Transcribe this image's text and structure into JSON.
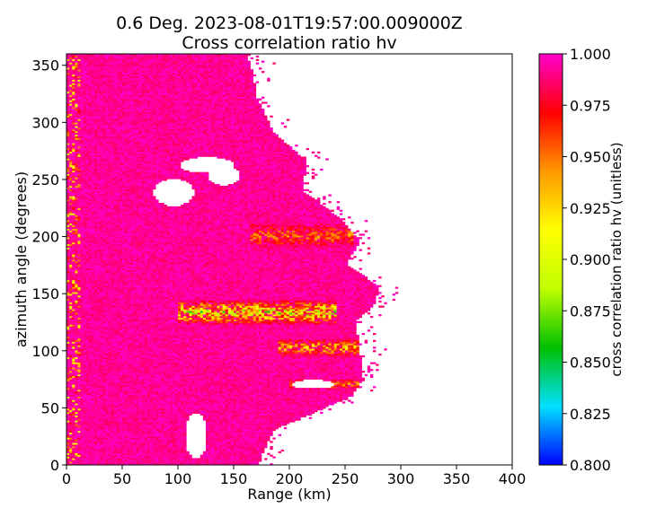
{
  "chart_data": {
    "type": "heatmap",
    "title_line1": "0.6 Deg. 2023-08-01T19:57:00.009000Z",
    "title_line2": "Cross correlation ratio hv",
    "xlabel": "Range (km)",
    "ylabel": "azimuth angle (degrees)",
    "xlim": [
      0,
      400
    ],
    "ylim": [
      0,
      360
    ],
    "xticks": [
      0,
      50,
      100,
      150,
      200,
      250,
      300,
      350,
      400
    ],
    "yticks": [
      0,
      50,
      100,
      150,
      200,
      250,
      300,
      350
    ],
    "xtick_labels": [
      "0",
      "50",
      "100",
      "150",
      "200",
      "250",
      "300",
      "350",
      "400"
    ],
    "ytick_labels": [
      "0",
      "50",
      "100",
      "150",
      "200",
      "250",
      "300",
      "350"
    ],
    "colorbar": {
      "label": "cross correlation ratio hv (unitless)",
      "min": 0.8,
      "max": 1.0,
      "ticks": [
        0.8,
        0.825,
        0.85,
        0.875,
        0.9,
        0.925,
        0.95,
        0.975,
        1.0
      ],
      "tick_labels": [
        "0.800",
        "0.825",
        "0.850",
        "0.875",
        "0.900",
        "0.925",
        "0.950",
        "0.975",
        "1.000"
      ],
      "colormap": [
        "#0000ff",
        "#00e0ff",
        "#00c000",
        "#c0ff00",
        "#ffff00",
        "#ff9900",
        "#ff0000",
        "#ff00cc"
      ]
    },
    "echo_extent": [
      {
        "azimuth": 0,
        "max_range_km": 170
      },
      {
        "azimuth": 30,
        "max_range_km": 185
      },
      {
        "azimuth": 60,
        "max_range_km": 255
      },
      {
        "azimuth": 75,
        "max_range_km": 265
      },
      {
        "azimuth": 100,
        "max_range_km": 262
      },
      {
        "azimuth": 125,
        "max_range_km": 258
      },
      {
        "azimuth": 140,
        "max_range_km": 275
      },
      {
        "azimuth": 155,
        "max_range_km": 280
      },
      {
        "azimuth": 175,
        "max_range_km": 250
      },
      {
        "azimuth": 195,
        "max_range_km": 262
      },
      {
        "azimuth": 215,
        "max_range_km": 245
      },
      {
        "azimuth": 240,
        "max_range_km": 210
      },
      {
        "azimuth": 265,
        "max_range_km": 215
      },
      {
        "azimuth": 290,
        "max_range_km": 185
      },
      {
        "azimuth": 320,
        "max_range_km": 170
      },
      {
        "azimuth": 345,
        "max_range_km": 165
      },
      {
        "azimuth": 360,
        "max_range_km": 160
      }
    ],
    "low_correlation_bands": [
      {
        "azimuth_center": 133,
        "azimuth_half_width": 12,
        "range_start_km": 100,
        "range_end_km": 240,
        "min_value": 0.86
      },
      {
        "azimuth_center": 102,
        "azimuth_half_width": 9,
        "range_start_km": 190,
        "range_end_km": 262,
        "min_value": 0.9
      },
      {
        "azimuth_center": 200,
        "azimuth_half_width": 14,
        "range_start_km": 165,
        "range_end_km": 255,
        "min_value": 0.93
      },
      {
        "azimuth_center": 70,
        "azimuth_half_width": 5,
        "range_start_km": 200,
        "range_end_km": 260,
        "min_value": 0.92
      }
    ],
    "no_echo_regions": [
      {
        "azimuth_center": 238,
        "range_center_km": 95,
        "azimuth_half_width": 12,
        "range_half_width_km": 18
      },
      {
        "azimuth_center": 262,
        "range_center_km": 125,
        "azimuth_half_width": 7,
        "range_half_width_km": 25
      },
      {
        "azimuth_center": 253,
        "range_center_km": 140,
        "azimuth_half_width": 9,
        "range_half_width_km": 14
      },
      {
        "azimuth_center": 25,
        "range_center_km": 115,
        "azimuth_half_width": 20,
        "range_half_width_km": 10
      },
      {
        "azimuth_center": 70,
        "range_center_km": 220,
        "azimuth_half_width": 4,
        "range_half_width_km": 20
      }
    ]
  }
}
